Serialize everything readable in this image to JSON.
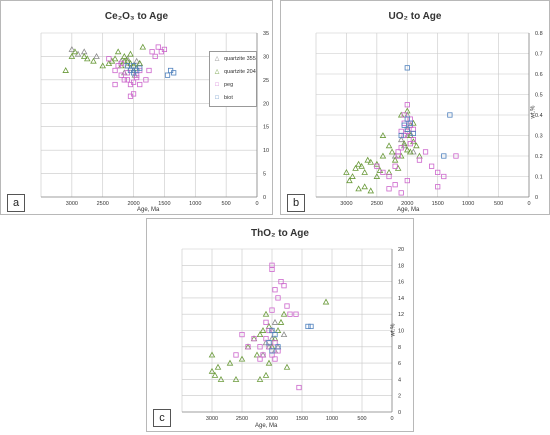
{
  "legend": [
    {
      "name": "quartzite 355",
      "shape": "triangle",
      "color": "#8c8c8c"
    },
    {
      "name": "quartzite 204",
      "shape": "triangle",
      "color": "#6a9a3a"
    },
    {
      "name": "peg",
      "shape": "square",
      "color": "#cc66cc"
    },
    {
      "name": "biot",
      "shape": "square",
      "color": "#4f81bd"
    }
  ],
  "chart_data": [
    {
      "type": "scatter",
      "label": "a",
      "title": "Ce₂O₃ to Age",
      "xlabel": "Age, Ma",
      "ylabel": "",
      "xlim": [
        3500,
        0
      ],
      "ylim": [
        0,
        35
      ],
      "xticks": [
        "3000",
        "2500",
        "2000",
        "1500",
        "1000",
        "500",
        "0"
      ],
      "yticks": [
        "0",
        "5",
        "10",
        "15",
        "20",
        "25",
        "30",
        "35"
      ],
      "series": [
        {
          "name": "quartzite 355",
          "points": [
            [
              3000,
              31.5
            ],
            [
              2900,
              30.5
            ],
            [
              2800,
              31
            ],
            [
              2600,
              30
            ],
            [
              2200,
              29
            ],
            [
              2100,
              28
            ],
            [
              2050,
              27.5
            ],
            [
              2000,
              28
            ],
            [
              1950,
              29
            ],
            [
              2100,
              29.5
            ],
            [
              2000,
              27
            ],
            [
              1900,
              28.5
            ],
            [
              2150,
              26.5
            ],
            [
              1980,
              26
            ]
          ]
        },
        {
          "name": "quartzite 204",
          "points": [
            [
              3100,
              27
            ],
            [
              3000,
              30
            ],
            [
              2950,
              31
            ],
            [
              2800,
              30
            ],
            [
              2750,
              29.5
            ],
            [
              2650,
              29
            ],
            [
              2500,
              28
            ],
            [
              2400,
              28.5
            ],
            [
              2350,
              29
            ],
            [
              2300,
              29.5
            ],
            [
              2200,
              28
            ],
            [
              2150,
              29
            ],
            [
              2100,
              29
            ],
            [
              2050,
              28.5
            ],
            [
              2000,
              28
            ],
            [
              1950,
              27.5
            ],
            [
              1900,
              28.5
            ],
            [
              1850,
              32
            ],
            [
              2250,
              31
            ],
            [
              2150,
              30
            ],
            [
              2050,
              30.5
            ]
          ]
        },
        {
          "name": "peg",
          "points": [
            [
              2400,
              29.5
            ],
            [
              2300,
              27
            ],
            [
              2250,
              28
            ],
            [
              2200,
              26
            ],
            [
              2150,
              25
            ],
            [
              2100,
              25
            ],
            [
              2050,
              24
            ],
            [
              2000,
              24.5
            ],
            [
              1950,
              26
            ],
            [
              1900,
              27
            ],
            [
              1800,
              25
            ],
            [
              1750,
              27
            ],
            [
              1700,
              31
            ],
            [
              1650,
              30
            ],
            [
              1600,
              32
            ],
            [
              1550,
              31
            ],
            [
              1500,
              31.5
            ],
            [
              2000,
              22
            ],
            [
              2050,
              21.5
            ],
            [
              2200,
              28.5
            ],
            [
              2100,
              26.5
            ],
            [
              1950,
              25.5
            ],
            [
              2300,
              24
            ],
            [
              1900,
              24
            ]
          ]
        },
        {
          "name": "biot",
          "points": [
            [
              2050,
              27
            ],
            [
              2000,
              28
            ],
            [
              1950,
              27
            ],
            [
              1900,
              27.5
            ],
            [
              2100,
              28
            ],
            [
              2000,
              26.5
            ],
            [
              1400,
              27
            ],
            [
              1350,
              26.5
            ],
            [
              1450,
              26
            ]
          ]
        }
      ]
    },
    {
      "type": "scatter",
      "label": "b",
      "title": "UO₂ to Age",
      "xlabel": "Age, Ma",
      "ylabel": "wt.%",
      "xlim": [
        3500,
        0
      ],
      "ylim": [
        0,
        0.8
      ],
      "xticks": [
        "3000",
        "2500",
        "2000",
        "1500",
        "1000",
        "500",
        "0"
      ],
      "yticks": [
        "0",
        "0.1",
        "0.2",
        "0.3",
        "0.4",
        "0.5",
        "0.6",
        "0.7",
        "0.8"
      ],
      "series": [
        {
          "name": "quartzite 355",
          "points": [
            [
              2050,
              0.25
            ],
            [
              2000,
              0.3
            ],
            [
              1950,
              0.35
            ],
            [
              2100,
              0.28
            ],
            [
              2000,
              0.33
            ],
            [
              1900,
              0.22
            ],
            [
              2200,
              0.2
            ],
            [
              2000,
              0.4
            ],
            [
              1950,
              0.31
            ]
          ]
        },
        {
          "name": "quartzite 204",
          "points": [
            [
              3000,
              0.12
            ],
            [
              2950,
              0.08
            ],
            [
              2900,
              0.1
            ],
            [
              2850,
              0.14
            ],
            [
              2800,
              0.16
            ],
            [
              2750,
              0.15
            ],
            [
              2700,
              0.12
            ],
            [
              2650,
              0.18
            ],
            [
              2600,
              0.17
            ],
            [
              2500,
              0.16
            ],
            [
              2450,
              0.13
            ],
            [
              2400,
              0.2
            ],
            [
              2300,
              0.25
            ],
            [
              2250,
              0.22
            ],
            [
              2200,
              0.18
            ],
            [
              2100,
              0.2
            ],
            [
              2050,
              0.26
            ],
            [
              2000,
              0.23
            ],
            [
              1950,
              0.3
            ],
            [
              1900,
              0.27
            ],
            [
              1850,
              0.25
            ],
            [
              2100,
              0.4
            ],
            [
              2000,
              0.42
            ],
            [
              1950,
              0.22
            ],
            [
              2300,
              0.12
            ],
            [
              2500,
              0.1
            ],
            [
              2700,
              0.05
            ],
            [
              2800,
              0.04
            ],
            [
              2600,
              0.03
            ],
            [
              2400,
              0.3
            ],
            [
              2150,
              0.14
            ],
            [
              1900,
              0.36
            ],
            [
              1800,
              0.2
            ]
          ]
        },
        {
          "name": "peg",
          "points": [
            [
              2500,
              0.15
            ],
            [
              2400,
              0.12
            ],
            [
              2300,
              0.1
            ],
            [
              2200,
              0.15
            ],
            [
              2150,
              0.22
            ],
            [
              2100,
              0.24
            ],
            [
              2050,
              0.3
            ],
            [
              2000,
              0.32
            ],
            [
              1950,
              0.35
            ],
            [
              1900,
              0.33
            ],
            [
              2000,
              0.45
            ],
            [
              1950,
              0.38
            ],
            [
              2050,
              0.36
            ],
            [
              2100,
              0.32
            ],
            [
              1900,
              0.28
            ],
            [
              1800,
              0.18
            ],
            [
              1700,
              0.22
            ],
            [
              1600,
              0.15
            ],
            [
              1500,
              0.12
            ],
            [
              1400,
              0.1
            ],
            [
              1200,
              0.2
            ],
            [
              2200,
              0.06
            ],
            [
              2100,
              0.02
            ],
            [
              2000,
              0.08
            ],
            [
              2300,
              0.04
            ],
            [
              1500,
              0.05
            ],
            [
              2050,
              0.4
            ],
            [
              1950,
              0.26
            ],
            [
              2150,
              0.2
            ]
          ]
        },
        {
          "name": "biot",
          "points": [
            [
              2000,
              0.63
            ],
            [
              2050,
              0.35
            ],
            [
              2000,
              0.33
            ],
            [
              1950,
              0.36
            ],
            [
              1900,
              0.31
            ],
            [
              2100,
              0.3
            ],
            [
              2000,
              0.38
            ],
            [
              1400,
              0.2
            ],
            [
              1300,
              0.4
            ]
          ]
        }
      ]
    },
    {
      "type": "scatter",
      "label": "c",
      "title": "ThO₂ to Age",
      "xlabel": "Age, Ma",
      "ylabel": "wt.%",
      "xlim": [
        3500,
        0
      ],
      "ylim": [
        0,
        20
      ],
      "xticks": [
        "3000",
        "2500",
        "2000",
        "1500",
        "1000",
        "500",
        "0"
      ],
      "yticks": [
        "0",
        "2",
        "4",
        "6",
        "8",
        "10",
        "12",
        "14",
        "16",
        "18",
        "20"
      ],
      "series": [
        {
          "name": "quartzite 355",
          "points": [
            [
              2050,
              8
            ],
            [
              2000,
              9
            ],
            [
              1950,
              7.5
            ],
            [
              2100,
              8.5
            ],
            [
              2000,
              10
            ],
            [
              1900,
              8
            ],
            [
              2150,
              7
            ],
            [
              1800,
              9.5
            ],
            [
              1950,
              11
            ]
          ]
        },
        {
          "name": "quartzite 204",
          "points": [
            [
              3000,
              5
            ],
            [
              2950,
              4.5
            ],
            [
              2900,
              5.5
            ],
            [
              2850,
              4
            ],
            [
              2700,
              6
            ],
            [
              2600,
              4
            ],
            [
              2500,
              6.5
            ],
            [
              2400,
              8
            ],
            [
              2300,
              9
            ],
            [
              2200,
              9.5
            ],
            [
              2150,
              10
            ],
            [
              2100,
              12
            ],
            [
              2050,
              10.5
            ],
            [
              2000,
              8
            ],
            [
              1950,
              9
            ],
            [
              1900,
              10
            ],
            [
              1850,
              11
            ],
            [
              1800,
              12
            ],
            [
              2200,
              4
            ],
            [
              2100,
              4.5
            ],
            [
              2050,
              6
            ],
            [
              3000,
              7
            ],
            [
              1750,
              5.5
            ],
            [
              1100,
              13.5
            ],
            [
              2250,
              7
            ]
          ]
        },
        {
          "name": "peg",
          "points": [
            [
              2600,
              7
            ],
            [
              2500,
              9.5
            ],
            [
              2400,
              8
            ],
            [
              2300,
              9
            ],
            [
              2200,
              8
            ],
            [
              2150,
              7
            ],
            [
              2100,
              9
            ],
            [
              2050,
              10
            ],
            [
              2000,
              17.5
            ],
            [
              2000,
              18
            ],
            [
              1950,
              15
            ],
            [
              1900,
              14
            ],
            [
              1850,
              16
            ],
            [
              1800,
              15.5
            ],
            [
              1750,
              13
            ],
            [
              1700,
              12
            ],
            [
              1600,
              12
            ],
            [
              1550,
              3
            ],
            [
              2000,
              7
            ],
            [
              2050,
              8
            ],
            [
              1950,
              8.5
            ],
            [
              1900,
              7.5
            ],
            [
              2100,
              11
            ],
            [
              2000,
              12.5
            ],
            [
              1950,
              6.5
            ],
            [
              2200,
              6.5
            ]
          ]
        },
        {
          "name": "biot",
          "points": [
            [
              2000,
              10
            ],
            [
              1950,
              9.5
            ],
            [
              2050,
              8.5
            ],
            [
              1900,
              8
            ],
            [
              1400,
              10.5
            ],
            [
              1350,
              10.5
            ],
            [
              2000,
              7.5
            ]
          ]
        }
      ]
    }
  ]
}
